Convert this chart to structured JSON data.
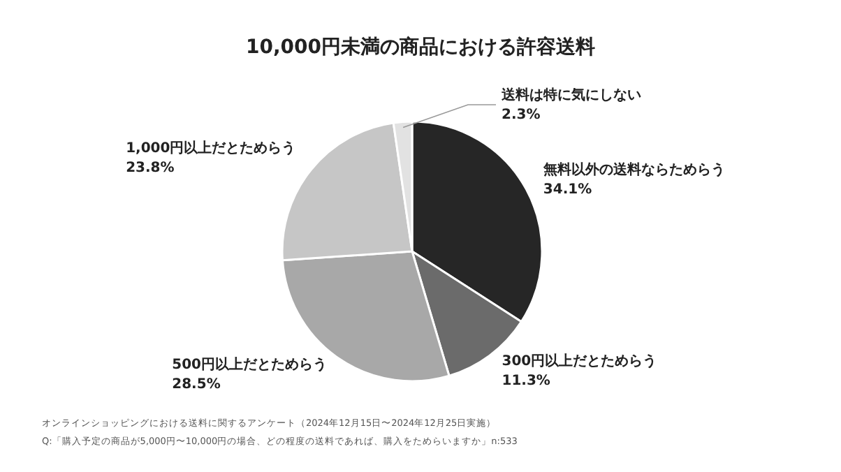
{
  "chart_data": {
    "type": "pie",
    "title": "10,000円未満の商品における許容送料",
    "categories": [
      "無料以外の送料ならためらう",
      "300円以上だとためらう",
      "500円以上だとためらう",
      "1,000円以上だとためらう",
      "送料は特に気にしない"
    ],
    "values": [
      34.1,
      11.3,
      28.5,
      23.8,
      2.3
    ],
    "colors": [
      "#262626",
      "#6b6b6b",
      "#a8a8a8",
      "#c6c6c6",
      "#e2e2e2"
    ],
    "value_labels": [
      "34.1%",
      "11.3%",
      "28.5%",
      "23.8%",
      "2.3%"
    ],
    "annotations": [
      "オンラインショッピングにおける送料に関するアンケート（2024年12月15日〜2024年12月25日実施）",
      "Q:「購入予定の商品が5,000円〜10,000円の場合、どの程度の送料であれば、購入をためらいますか」n:533"
    ]
  }
}
